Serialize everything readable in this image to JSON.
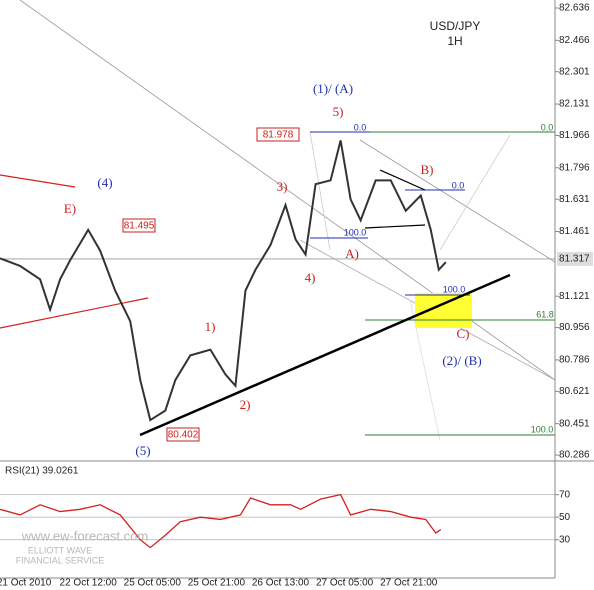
{
  "chart_data": [
    {
      "type": "line",
      "title": "USD/JPY",
      "subtitle": "1H",
      "x": [
        0,
        5,
        10,
        12.5,
        15,
        17.5,
        22,
        25,
        28.75,
        32.5,
        35,
        37.5,
        41.25,
        43.75,
        47.5,
        52.5,
        56.25,
        58.75,
        61.25,
        63.75,
        67.5,
        71.25,
        73.75,
        76.25,
        78.75,
        82.5,
        85,
        87.5,
        90,
        93.75,
        97.5,
        101.25,
        105,
        107.5,
        109.5,
        111.25
      ],
      "values": [
        81.32,
        81.28,
        81.21,
        81.05,
        81.21,
        81.31,
        81.47,
        81.36,
        81.15,
        80.99,
        80.68,
        80.47,
        80.52,
        80.68,
        80.81,
        80.84,
        80.71,
        80.65,
        81.15,
        81.26,
        81.39,
        81.6,
        81.42,
        81.34,
        81.71,
        81.73,
        81.94,
        81.63,
        81.52,
        81.73,
        81.73,
        81.57,
        81.65,
        81.47,
        81.26,
        81.3
      ],
      "color": "#333333",
      "xlim": [
        0,
        138.5
      ],
      "ylim": [
        80.26,
        82.678
      ],
      "yticks": [
        82.636,
        82.466,
        82.301,
        82.131,
        81.966,
        81.796,
        81.631,
        81.461,
        81.121,
        80.956,
        80.786,
        80.621,
        80.451,
        80.286
      ],
      "last_price": 81.317,
      "annotations": [
        "(1)/ (A)",
        "5)",
        "81.978",
        "0.0",
        "0.0",
        "B)",
        "0.0",
        "(4)",
        "E)",
        "81.495",
        "3)",
        "100.0",
        "A)",
        "4)",
        "100.0",
        "61.8",
        "C)",
        "1)",
        "(2)/ (B)",
        "2)",
        "80.402",
        "(5)",
        "100.0"
      ]
    },
    {
      "type": "line",
      "title": "RSI(21) 39.0261",
      "x": [
        0,
        5,
        10,
        15,
        20,
        25,
        30,
        35,
        37.5,
        41.25,
        45,
        50,
        55,
        60,
        62.5,
        67.5,
        72.5,
        75,
        80,
        85,
        87.5,
        92.5,
        97.5,
        102.5,
        106.25,
        108.75,
        110
      ],
      "values": [
        57,
        52,
        61,
        55,
        57,
        61,
        52,
        30,
        23,
        34,
        46,
        50,
        48,
        52,
        67,
        61,
        61,
        57,
        66,
        70,
        52,
        57,
        55,
        50,
        48,
        36,
        39
      ],
      "color": "#d42020",
      "xlim": [
        0,
        138.5
      ],
      "ylim": [
        -4,
        99
      ],
      "yticks": [
        70,
        50,
        30
      ],
      "xticks": [
        {
          "value": 6,
          "label": "21 Oct 2010"
        },
        {
          "value": 22,
          "label": "22 Oct 12:00"
        },
        {
          "value": 38,
          "label": "25 Oct 05:00"
        },
        {
          "value": 54,
          "label": "25 Oct 21:00"
        },
        {
          "value": 70,
          "label": "26 Oct 13:00"
        },
        {
          "value": 86,
          "label": "27 Oct 05:00"
        },
        {
          "value": 102,
          "label": "27 Oct 21:00"
        }
      ],
      "watermark": [
        "www.ew-forecast.com",
        "ELLIOTT WAVE",
        "FINANCIAL SERVICE"
      ]
    }
  ]
}
